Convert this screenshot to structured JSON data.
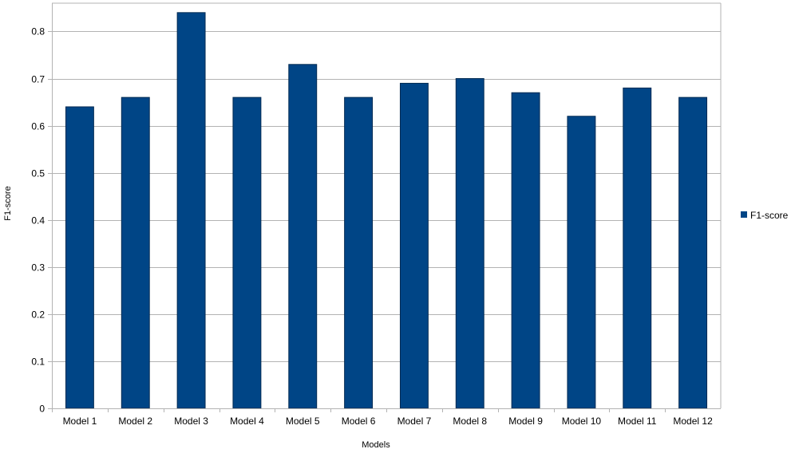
{
  "chart_data": {
    "type": "bar",
    "categories": [
      "Model 1",
      "Model 2",
      "Model 3",
      "Model 4",
      "Model 5",
      "Model 6",
      "Model 7",
      "Model 8",
      "Model 9",
      "Model 10",
      "Model 11",
      "Model 12"
    ],
    "series": [
      {
        "name": "F1-score",
        "values": [
          0.64,
          0.66,
          0.84,
          0.66,
          0.73,
          0.66,
          0.69,
          0.7,
          0.67,
          0.62,
          0.68,
          0.66
        ],
        "color": "#004586"
      }
    ],
    "xlabel": "Models",
    "ylabel": "F1-score",
    "ylim": [
      0,
      0.8
    ],
    "yticks": [
      "0",
      "0.1",
      "0.2",
      "0.3",
      "0.4",
      "0.5",
      "0.6",
      "0.7",
      "0.8"
    ],
    "grid": true,
    "legend_position": "right"
  }
}
